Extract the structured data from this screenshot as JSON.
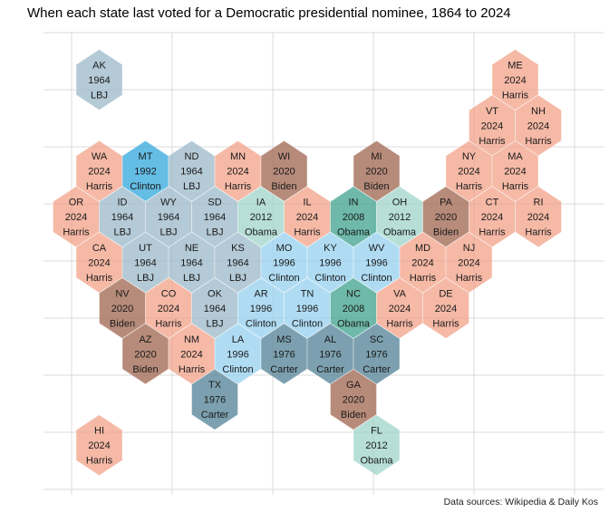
{
  "title": "When each state last voted for a Democratic presidential nominee, 1864 to 2024",
  "caption": "Data sources: Wikipedia & Daily Kos",
  "chart_data": {
    "type": "heatmap",
    "subtype": "hexagon-tile-map-of-us-states",
    "note": "Each hexagon shows state abbreviation, year the state last voted Democratic, and that nominee. Color encodes the year.",
    "grid": "off-visible-faint",
    "gridline_color": "#e4e4e4",
    "year_colors": {
      "1964": "#aec6d3",
      "1976": "#7299a9",
      "1992": "#58b8e3",
      "1996": "#aad9f2",
      "2008": "#63b4a3",
      "2012": "#b2ddd4",
      "2020": "#b28270",
      "2024": "#f4b49f"
    },
    "states": [
      {
        "abbr": "AK",
        "year": "1964",
        "candidate": "LBJ",
        "col": 1,
        "row": 0
      },
      {
        "abbr": "ME",
        "year": "2024",
        "candidate": "Harris",
        "col": 19,
        "row": 0
      },
      {
        "abbr": "VT",
        "year": "2024",
        "candidate": "Harris",
        "col": 18,
        "row": 1
      },
      {
        "abbr": "NH",
        "year": "2024",
        "candidate": "Harris",
        "col": 20,
        "row": 1
      },
      {
        "abbr": "WA",
        "year": "2024",
        "candidate": "Harris",
        "col": 1,
        "row": 2
      },
      {
        "abbr": "MT",
        "year": "1992",
        "candidate": "Clinton",
        "col": 3,
        "row": 2
      },
      {
        "abbr": "ND",
        "year": "1964",
        "candidate": "LBJ",
        "col": 5,
        "row": 2
      },
      {
        "abbr": "MN",
        "year": "2024",
        "candidate": "Harris",
        "col": 7,
        "row": 2
      },
      {
        "abbr": "WI",
        "year": "2020",
        "candidate": "Biden",
        "col": 9,
        "row": 2
      },
      {
        "abbr": "MI",
        "year": "2020",
        "candidate": "Biden",
        "col": 13,
        "row": 2
      },
      {
        "abbr": "NY",
        "year": "2024",
        "candidate": "Harris",
        "col": 17,
        "row": 2
      },
      {
        "abbr": "MA",
        "year": "2024",
        "candidate": "Harris",
        "col": 19,
        "row": 2
      },
      {
        "abbr": "OR",
        "year": "2024",
        "candidate": "Harris",
        "col": 0,
        "row": 3
      },
      {
        "abbr": "ID",
        "year": "1964",
        "candidate": "LBJ",
        "col": 2,
        "row": 3
      },
      {
        "abbr": "WY",
        "year": "1964",
        "candidate": "LBJ",
        "col": 4,
        "row": 3
      },
      {
        "abbr": "SD",
        "year": "1964",
        "candidate": "LBJ",
        "col": 6,
        "row": 3
      },
      {
        "abbr": "IA",
        "year": "2012",
        "candidate": "Obama",
        "col": 8,
        "row": 3
      },
      {
        "abbr": "IL",
        "year": "2024",
        "candidate": "Harris",
        "col": 10,
        "row": 3
      },
      {
        "abbr": "IN",
        "year": "2008",
        "candidate": "Obama",
        "col": 12,
        "row": 3
      },
      {
        "abbr": "OH",
        "year": "2012",
        "candidate": "Obama",
        "col": 14,
        "row": 3
      },
      {
        "abbr": "PA",
        "year": "2020",
        "candidate": "Biden",
        "col": 16,
        "row": 3
      },
      {
        "abbr": "CT",
        "year": "2024",
        "candidate": "Harris",
        "col": 18,
        "row": 3
      },
      {
        "abbr": "RI",
        "year": "2024",
        "candidate": "Harris",
        "col": 20,
        "row": 3
      },
      {
        "abbr": "CA",
        "year": "2024",
        "candidate": "Harris",
        "col": 1,
        "row": 4
      },
      {
        "abbr": "UT",
        "year": "1964",
        "candidate": "LBJ",
        "col": 3,
        "row": 4
      },
      {
        "abbr": "NE",
        "year": "1964",
        "candidate": "LBJ",
        "col": 5,
        "row": 4
      },
      {
        "abbr": "KS",
        "year": "1964",
        "candidate": "LBJ",
        "col": 7,
        "row": 4
      },
      {
        "abbr": "MO",
        "year": "1996",
        "candidate": "Clinton",
        "col": 9,
        "row": 4
      },
      {
        "abbr": "KY",
        "year": "1996",
        "candidate": "Clinton",
        "col": 11,
        "row": 4
      },
      {
        "abbr": "WV",
        "year": "1996",
        "candidate": "Clinton",
        "col": 13,
        "row": 4
      },
      {
        "abbr": "MD",
        "year": "2024",
        "candidate": "Harris",
        "col": 15,
        "row": 4
      },
      {
        "abbr": "NJ",
        "year": "2024",
        "candidate": "Harris",
        "col": 17,
        "row": 4
      },
      {
        "abbr": "NV",
        "year": "2020",
        "candidate": "Biden",
        "col": 2,
        "row": 5
      },
      {
        "abbr": "CO",
        "year": "2024",
        "candidate": "Harris",
        "col": 4,
        "row": 5
      },
      {
        "abbr": "OK",
        "year": "1964",
        "candidate": "LBJ",
        "col": 6,
        "row": 5
      },
      {
        "abbr": "AR",
        "year": "1996",
        "candidate": "Clinton",
        "col": 8,
        "row": 5
      },
      {
        "abbr": "TN",
        "year": "1996",
        "candidate": "Clinton",
        "col": 10,
        "row": 5
      },
      {
        "abbr": "NC",
        "year": "2008",
        "candidate": "Obama",
        "col": 12,
        "row": 5
      },
      {
        "abbr": "VA",
        "year": "2024",
        "candidate": "Harris",
        "col": 14,
        "row": 5
      },
      {
        "abbr": "DE",
        "year": "2024",
        "candidate": "Harris",
        "col": 16,
        "row": 5
      },
      {
        "abbr": "AZ",
        "year": "2020",
        "candidate": "Biden",
        "col": 3,
        "row": 6
      },
      {
        "abbr": "NM",
        "year": "2024",
        "candidate": "Harris",
        "col": 5,
        "row": 6
      },
      {
        "abbr": "LA",
        "year": "1996",
        "candidate": "Clinton",
        "col": 7,
        "row": 6
      },
      {
        "abbr": "MS",
        "year": "1976",
        "candidate": "Carter",
        "col": 9,
        "row": 6
      },
      {
        "abbr": "AL",
        "year": "1976",
        "candidate": "Carter",
        "col": 11,
        "row": 6
      },
      {
        "abbr": "SC",
        "year": "1976",
        "candidate": "Carter",
        "col": 13,
        "row": 6
      },
      {
        "abbr": "TX",
        "year": "1976",
        "candidate": "Carter",
        "col": 6,
        "row": 7
      },
      {
        "abbr": "GA",
        "year": "2020",
        "candidate": "Biden",
        "col": 12,
        "row": 7
      },
      {
        "abbr": "HI",
        "year": "2024",
        "candidate": "Harris",
        "col": 1,
        "row": 8
      },
      {
        "abbr": "FL",
        "year": "2012",
        "candidate": "Obama",
        "col": 13,
        "row": 8
      }
    ]
  }
}
